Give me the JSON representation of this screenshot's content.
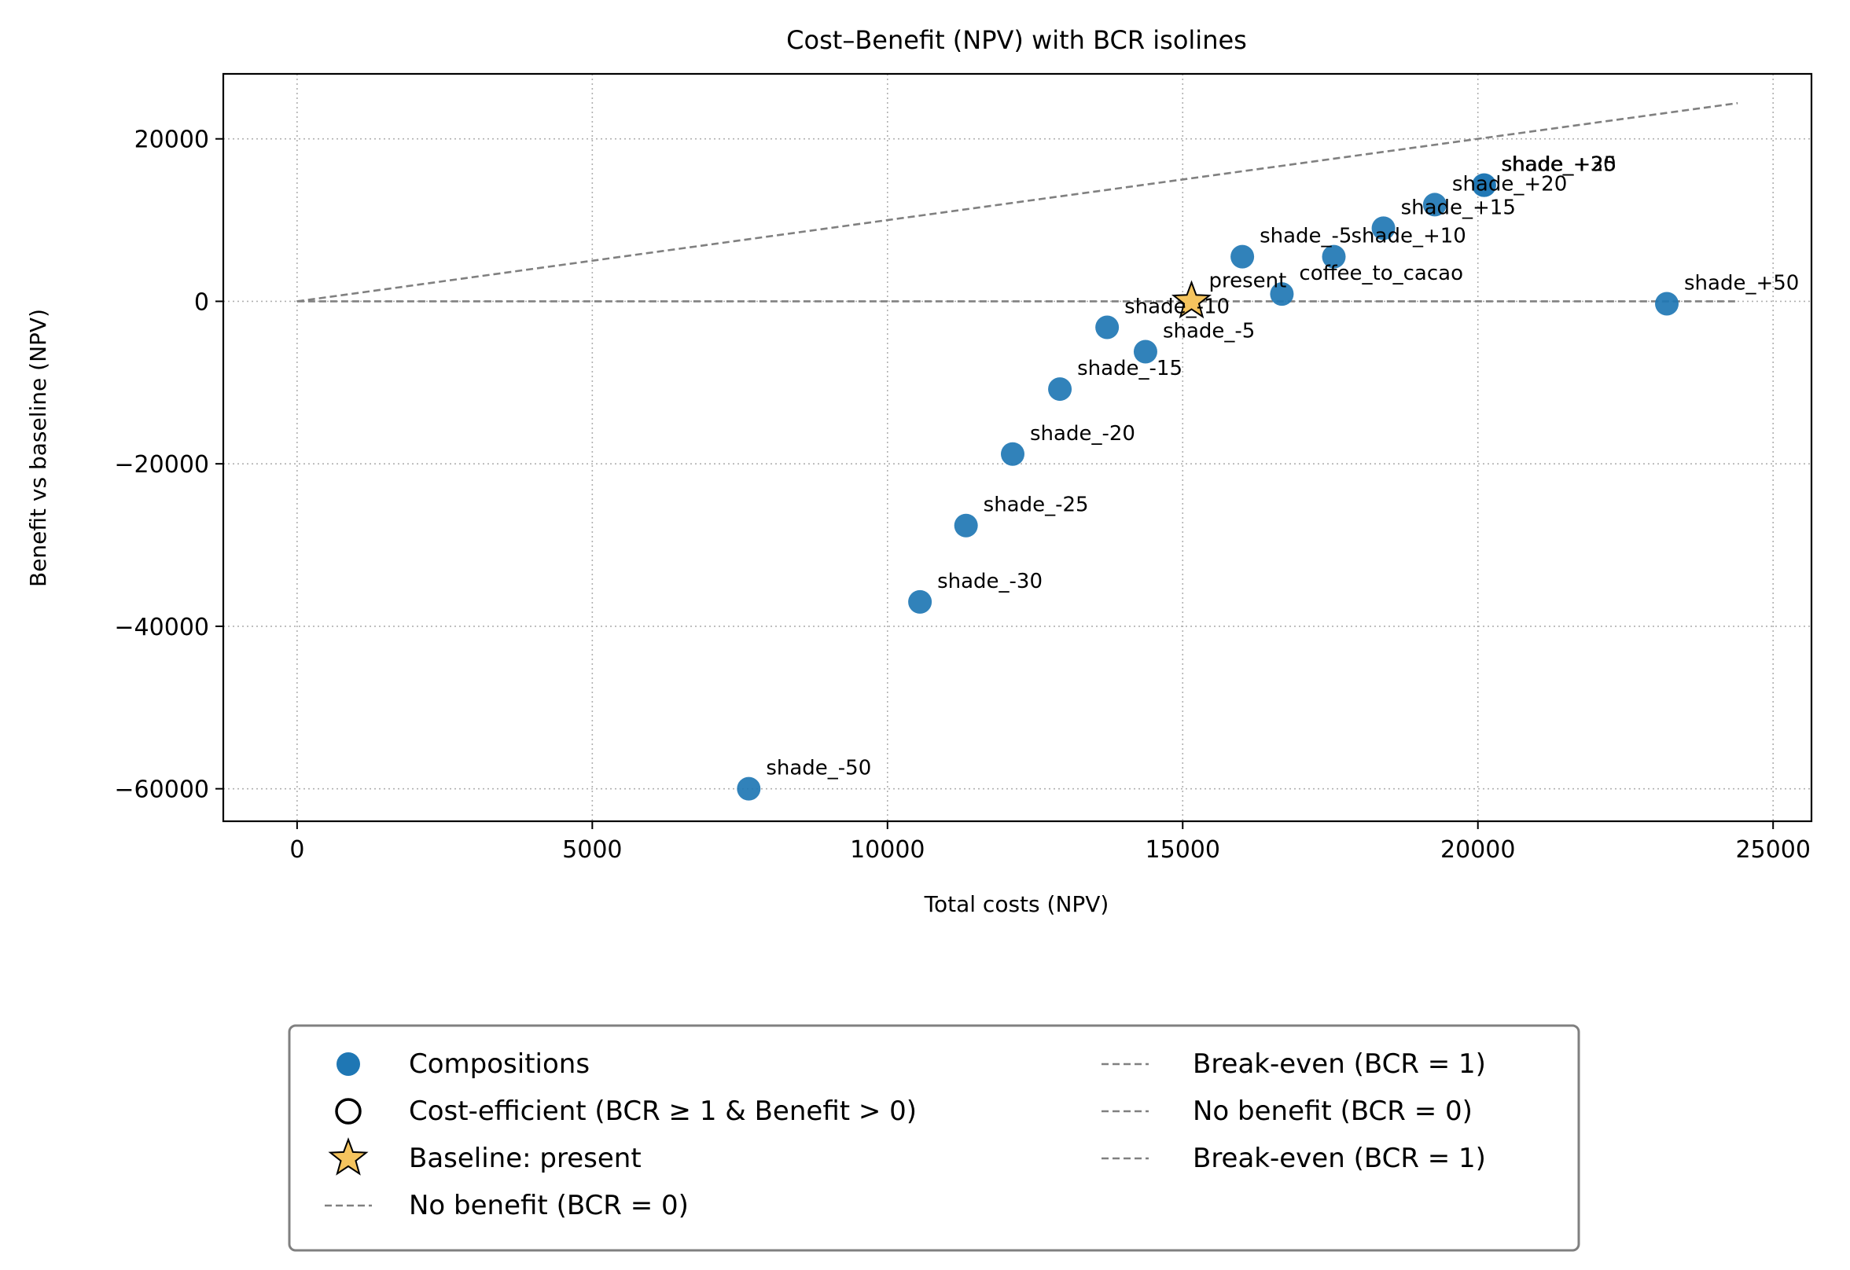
{
  "chart_data": {
    "type": "scatter",
    "title": "Cost–Benefit (NPV) with BCR isolines",
    "xlabel": "Total costs (NPV)",
    "ylabel": "Benefit vs baseline (NPV)",
    "xlim": [
      -1250,
      25650
    ],
    "ylim": [
      -64000,
      28000
    ],
    "xticks": [
      0,
      5000,
      10000,
      15000,
      20000,
      25000
    ],
    "xtick_labels": [
      "0",
      "5000",
      "10000",
      "15000",
      "20000",
      "25000"
    ],
    "yticks": [
      -60000,
      -40000,
      -20000,
      0,
      20000
    ],
    "ytick_labels": [
      "−60000",
      "−40000",
      "−20000",
      "0",
      "20000"
    ],
    "grid": true,
    "legend_position": "below",
    "colors": {
      "points": "#1f77b4",
      "baseline_star": "#f5c45e",
      "isolines": "#808080"
    },
    "series": [
      {
        "name": "Compositions",
        "points": [
          {
            "label": "shade_-50",
            "x": 7650,
            "y": -60000
          },
          {
            "label": "shade_-30",
            "x": 10550,
            "y": -37000
          },
          {
            "label": "shade_-25",
            "x": 11330,
            "y": -27600
          },
          {
            "label": "shade_-20",
            "x": 12120,
            "y": -18800
          },
          {
            "label": "shade_-15",
            "x": 12920,
            "y": -10800
          },
          {
            "label": "shade_-10",
            "x": 13720,
            "y": -3200
          },
          {
            "label": "shade_-5",
            "x": 14370,
            "y": -6200
          },
          {
            "label": "shade_-5",
            "x": 16010,
            "y": 5500
          },
          {
            "label": "coffee_to_cacao",
            "x": 16680,
            "y": 900
          },
          {
            "label": "shade_+10",
            "x": 17560,
            "y": 5500
          },
          {
            "label": "shade_+15",
            "x": 18400,
            "y": 9000
          },
          {
            "label": "shade_+20",
            "x": 19270,
            "y": 11900
          },
          {
            "label": "shade_+25",
            "x": 20110,
            "y": 14300
          },
          {
            "label": "shade_+30",
            "x": 20100,
            "y": 14300
          },
          {
            "label": "shade_+50",
            "x": 23200,
            "y": -300
          }
        ]
      },
      {
        "name": "Baseline: present",
        "points": [
          {
            "label": "present",
            "x": 15150,
            "y": 0
          }
        ]
      }
    ],
    "isolines": [
      {
        "name": "Break-even (BCR = 1)",
        "x": [
          0,
          24400
        ],
        "y": [
          0,
          24400
        ]
      },
      {
        "name": "No benefit (BCR = 0)",
        "x": [
          0,
          24400
        ],
        "y": [
          0,
          0
        ]
      }
    ],
    "legend": {
      "left": [
        {
          "label": "Compositions",
          "marker": "dot"
        },
        {
          "label": "Cost-efficient (BCR ≥ 1 & Benefit > 0)",
          "marker": "ring"
        },
        {
          "label": "Baseline: present",
          "marker": "star"
        },
        {
          "label": "No benefit (BCR = 0)",
          "marker": "dash"
        }
      ],
      "right": [
        {
          "label": "Break-even (BCR = 1)",
          "marker": "dash"
        },
        {
          "label": "No benefit (BCR = 0)",
          "marker": "dash"
        },
        {
          "label": "Break-even (BCR = 1)",
          "marker": "dash"
        }
      ]
    }
  }
}
